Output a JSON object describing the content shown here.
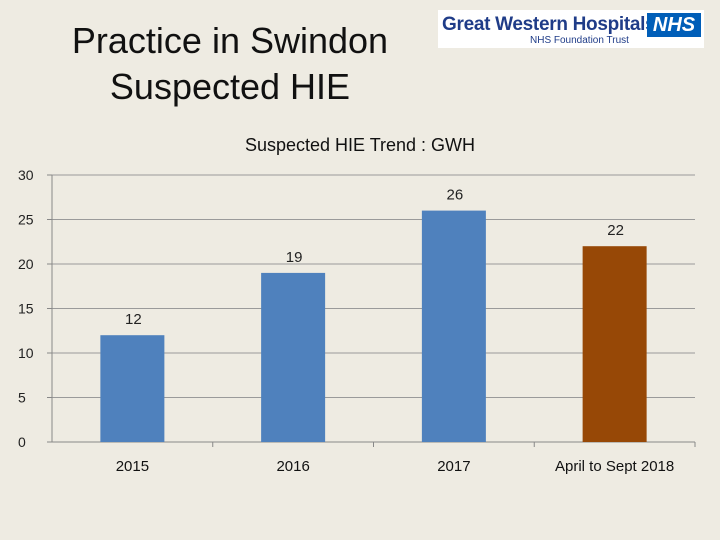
{
  "slide": {
    "title_line1": "Practice in Swindon",
    "title_line2": "Suspected HIE"
  },
  "logo": {
    "name": "Great Western Hospitals",
    "badge": "NHS",
    "subtitle": "NHS Foundation Trust"
  },
  "chart_data": {
    "type": "bar",
    "title": "Suspected HIE Trend : GWH",
    "categories": [
      "2015",
      "2016",
      "2017",
      "April to Sept 2018"
    ],
    "values": [
      12,
      19,
      26,
      22
    ],
    "bar_colors": [
      "#4f81bd",
      "#4f81bd",
      "#4f81bd",
      "#974806"
    ],
    "ylim": [
      0,
      30
    ],
    "yticks": [
      0,
      5,
      10,
      15,
      20,
      25,
      30
    ],
    "grid": true,
    "data_labels": true
  }
}
